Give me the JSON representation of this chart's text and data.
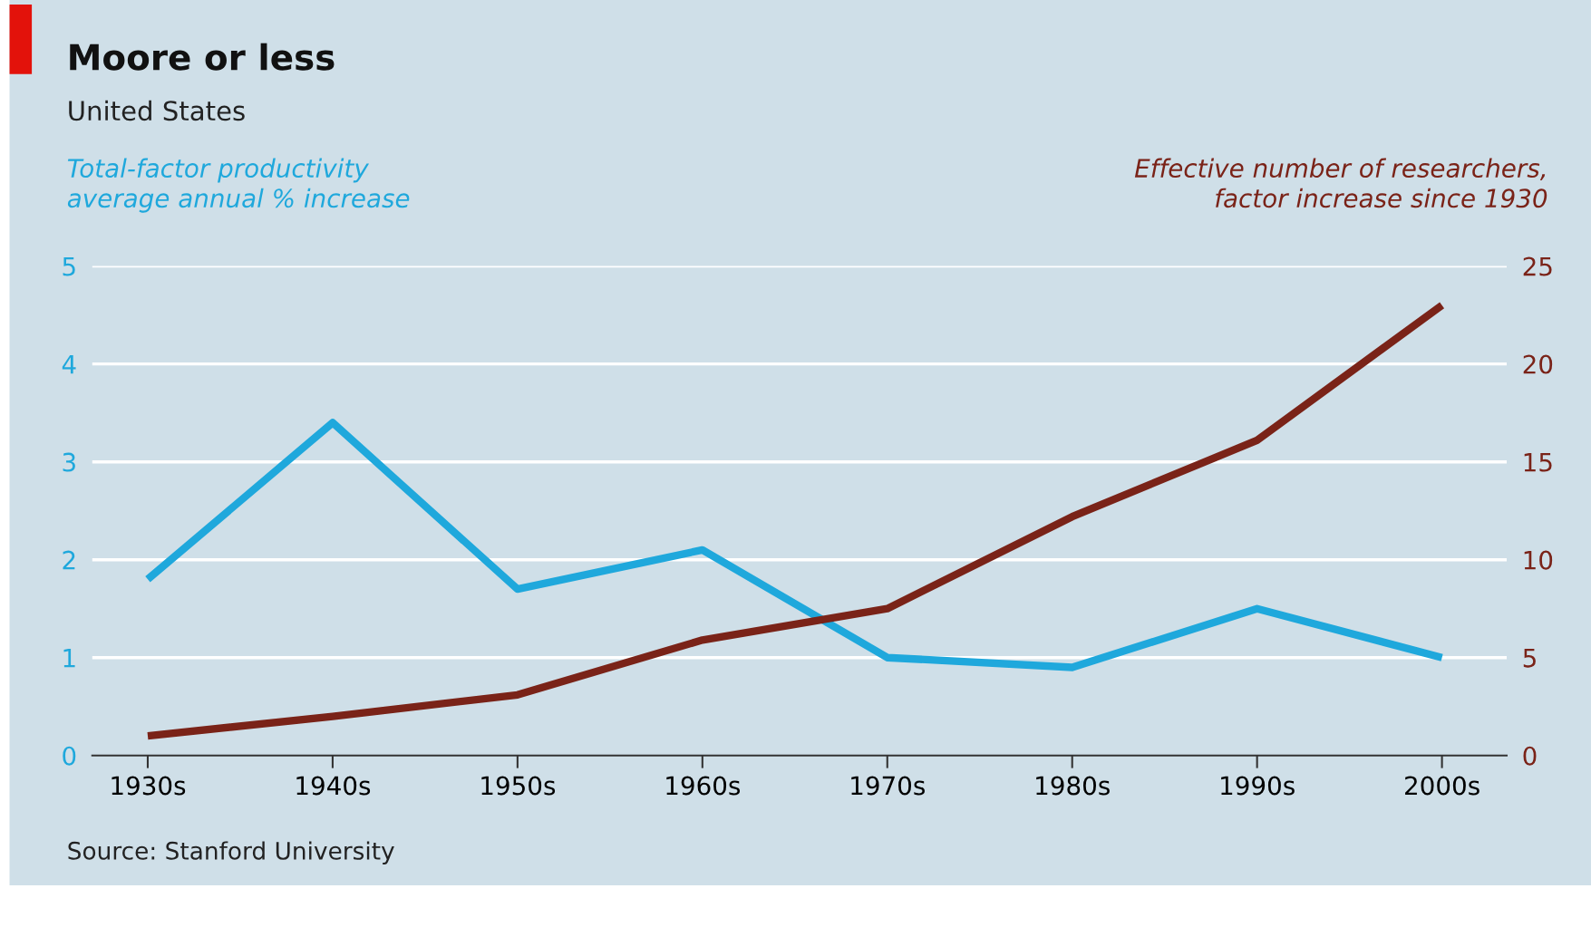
{
  "chart_data": {
    "type": "line",
    "title": "Moore or less",
    "subtitle": "United States",
    "ylabel": "Total-factor productivity\naverage annual % increase",
    "y2label": "Effective number of researchers,\nfactor increase since 1930",
    "categories": [
      "1930s",
      "1940s",
      "1950s",
      "1960s",
      "1970s",
      "1980s",
      "1990s",
      "2000s"
    ],
    "series": [
      {
        "color": "#1fa8dc",
        "values": [
          1.8,
          3.4,
          1.7,
          2.1,
          1.0,
          0.9,
          1.5,
          1.0
        ]
      },
      {
        "color": "#7a2318",
        "axis": "y2",
        "values": [
          1,
          2,
          3.1,
          5.9,
          7.5,
          12.2,
          16.1,
          23
        ]
      }
    ],
    "ylim": [
      0,
      5
    ],
    "yticks": [
      0,
      1,
      2,
      3,
      4,
      5
    ],
    "y2lim": [
      0,
      25
    ],
    "y2ticks": [
      0,
      5,
      10,
      15,
      20,
      25
    ],
    "grid": "y",
    "marker": "none",
    "line_style": "solid",
    "annotations": [
      "Source: Stanford University"
    ]
  }
}
